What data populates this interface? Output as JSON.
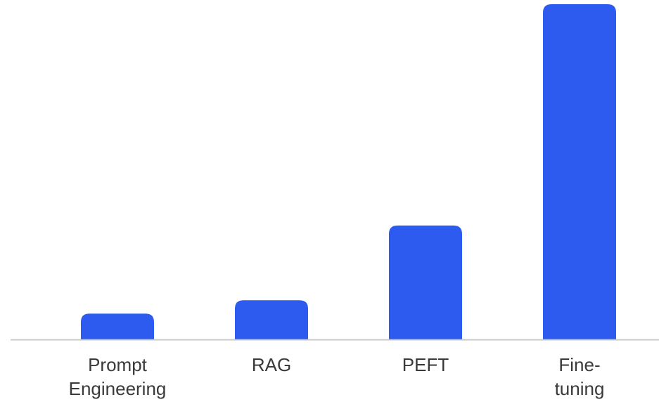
{
  "chart_data": {
    "type": "bar",
    "title": "",
    "xlabel": "",
    "ylabel": "",
    "categories": [
      [
        "Prompt",
        "Engineering"
      ],
      [
        "RAG"
      ],
      [
        "PEFT"
      ],
      [
        "Fine-",
        "tuning"
      ]
    ],
    "values": [
      7.7,
      11.7,
      34,
      100
    ],
    "ylim": [
      0,
      100
    ],
    "grid": false,
    "legend": "none",
    "colors": {
      "bar": "#2D5BF0",
      "axis": "#C8C8C8",
      "tick_text": "#3A3A3A"
    }
  }
}
